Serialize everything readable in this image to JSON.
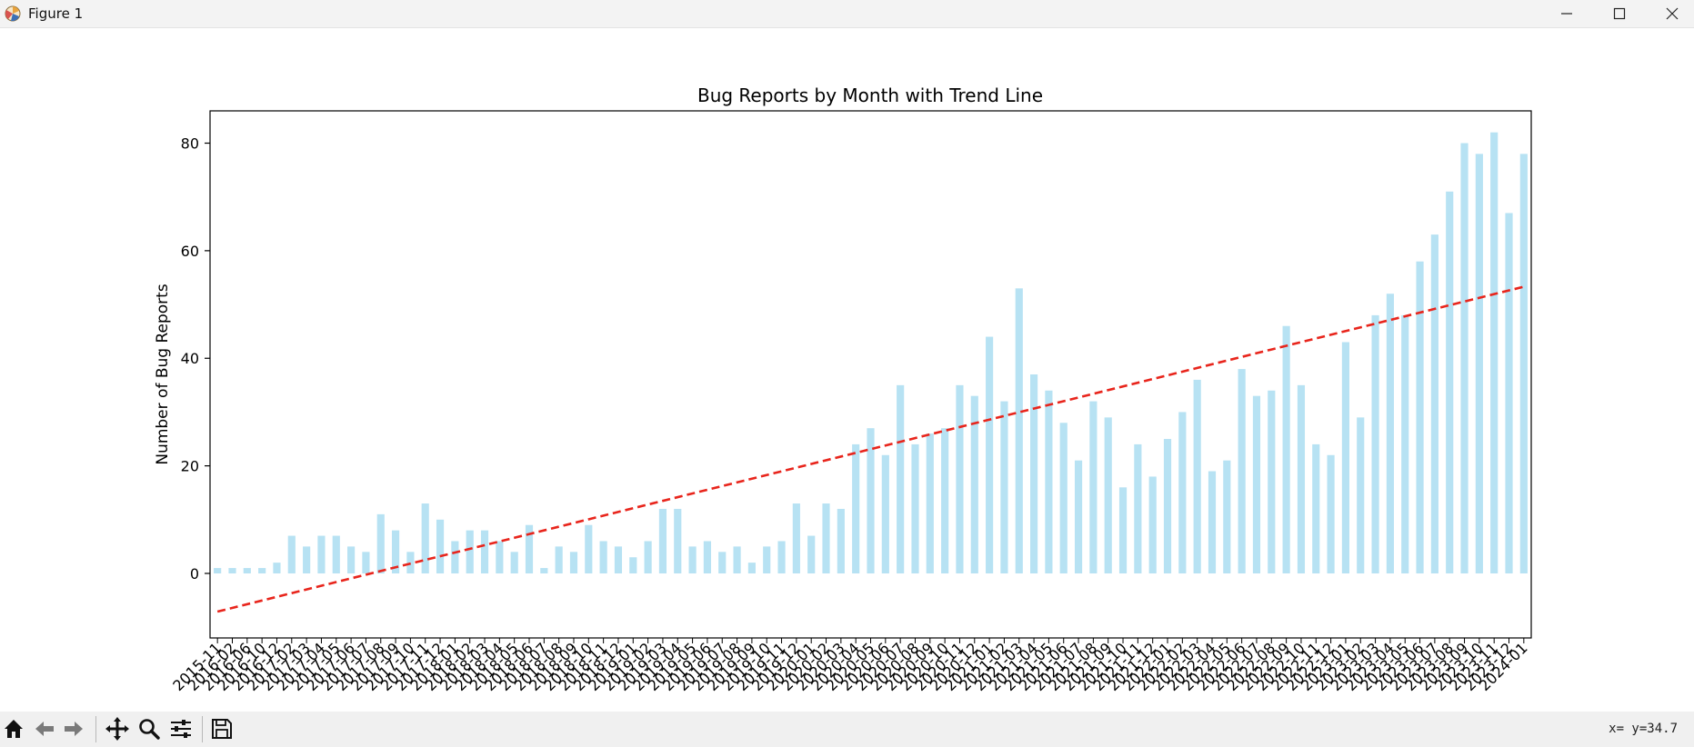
{
  "window": {
    "title": "Figure 1",
    "icons": [
      "matplotlib-icon",
      "minimize-icon",
      "maximize-icon",
      "close-icon"
    ]
  },
  "toolbar": {
    "icons": [
      "home-icon",
      "back-icon",
      "forward-icon",
      "pan-icon",
      "zoom-icon",
      "configure-subplots-icon",
      "save-icon"
    ],
    "coords": "x= y=34.7"
  },
  "chart_data": {
    "type": "bar",
    "title": "Bug Reports by Month with Trend Line",
    "xlabel": "",
    "ylabel": "Number of Bug Reports",
    "ylim": [
      -12,
      86
    ],
    "yticks": [
      0,
      20,
      40,
      60,
      80
    ],
    "bar_color": "#87ceeb",
    "grid": false,
    "categories": [
      "2015-11",
      "2016-02",
      "2016-06",
      "2016-10",
      "2016-12",
      "2017-02",
      "2017-03",
      "2017-04",
      "2017-05",
      "2017-06",
      "2017-07",
      "2017-08",
      "2017-09",
      "2017-10",
      "2017-11",
      "2017-12",
      "2018-01",
      "2018-02",
      "2018-03",
      "2018-04",
      "2018-05",
      "2018-06",
      "2018-07",
      "2018-08",
      "2018-09",
      "2018-10",
      "2018-11",
      "2018-12",
      "2019-01",
      "2019-02",
      "2019-03",
      "2019-04",
      "2019-05",
      "2019-06",
      "2019-07",
      "2019-08",
      "2019-09",
      "2019-10",
      "2019-11",
      "2019-12",
      "2020-01",
      "2020-02",
      "2020-03",
      "2020-04",
      "2020-05",
      "2020-06",
      "2020-07",
      "2020-08",
      "2020-09",
      "2020-10",
      "2020-11",
      "2020-12",
      "2021-01",
      "2021-02",
      "2021-03",
      "2021-04",
      "2021-05",
      "2021-06",
      "2021-07",
      "2021-08",
      "2021-09",
      "2021-10",
      "2021-11",
      "2021-12",
      "2022-01",
      "2022-02",
      "2022-03",
      "2022-04",
      "2022-05",
      "2022-06",
      "2022-07",
      "2022-08",
      "2022-09",
      "2022-10",
      "2022-11",
      "2022-12",
      "2023-01",
      "2023-02",
      "2023-03",
      "2023-04",
      "2023-05",
      "2023-06",
      "2023-07",
      "2023-08",
      "2023-09",
      "2023-10",
      "2023-11",
      "2023-12",
      "2024-01"
    ],
    "values": [
      1,
      1,
      1,
      1,
      2,
      7,
      5,
      7,
      7,
      5,
      4,
      11,
      8,
      4,
      13,
      10,
      6,
      8,
      8,
      6,
      4,
      9,
      1,
      5,
      4,
      9,
      6,
      5,
      3,
      6,
      12,
      12,
      5,
      6,
      4,
      5,
      2,
      5,
      6,
      13,
      7,
      13,
      12,
      24,
      27,
      22,
      35,
      24,
      26,
      27,
      35,
      33,
      44,
      32,
      53,
      37,
      34,
      28,
      21,
      32,
      29,
      16,
      24,
      18,
      25,
      30,
      36,
      19,
      21,
      38,
      33,
      34,
      46,
      35,
      24,
      22,
      43,
      29,
      48,
      52,
      48,
      58,
      63,
      71,
      80,
      78,
      82,
      67,
      78
    ],
    "trend_line": {
      "style": "dashed",
      "color": "#e8251c",
      "start": -7.1,
      "end": 53.3
    }
  }
}
